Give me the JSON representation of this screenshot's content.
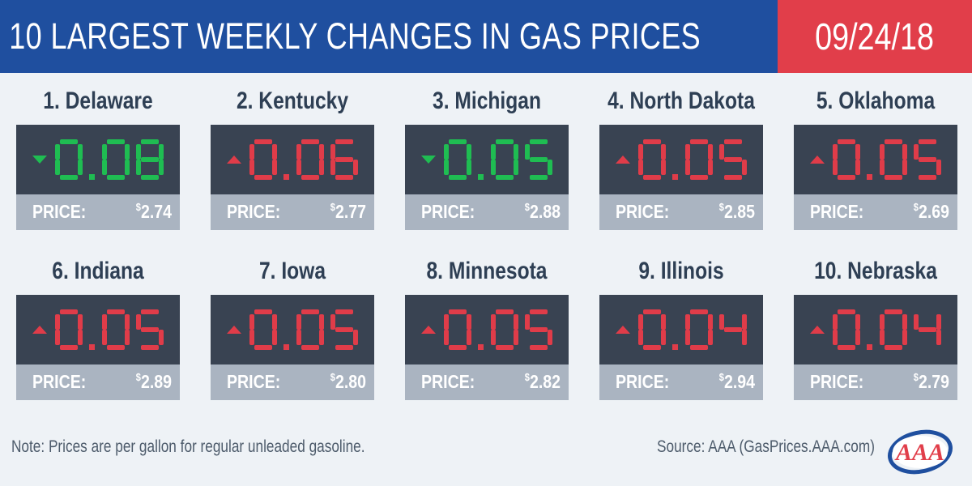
{
  "header": {
    "title": "10 LARGEST WEEKLY CHANGES IN GAS PRICES",
    "date": "09/24/18",
    "colors": {
      "title_bg": "#1f4f9f",
      "date_bg": "#e13e4a"
    }
  },
  "price_label": "PRICE:",
  "currency_symbol": "$",
  "colors": {
    "up": "#e03c49",
    "down": "#1fbd52",
    "display_bg": "#394352",
    "price_bg": "#aab4c1"
  },
  "states": [
    {
      "rank_label": "1. Delaware",
      "direction": "down",
      "change": "0.08",
      "price": "2.74"
    },
    {
      "rank_label": "2. Kentucky",
      "direction": "up",
      "change": "0.06",
      "price": "2.77"
    },
    {
      "rank_label": "3. Michigan",
      "direction": "down",
      "change": "0.05",
      "price": "2.88"
    },
    {
      "rank_label": "4. North Dakota",
      "direction": "up",
      "change": "0.05",
      "price": "2.85"
    },
    {
      "rank_label": "5. Oklahoma",
      "direction": "up",
      "change": "0.05",
      "price": "2.69"
    },
    {
      "rank_label": "6. Indiana",
      "direction": "up",
      "change": "0.05",
      "price": "2.89"
    },
    {
      "rank_label": "7. Iowa",
      "direction": "up",
      "change": "0.05",
      "price": "2.80"
    },
    {
      "rank_label": "8. Minnesota",
      "direction": "up",
      "change": "0.05",
      "price": "2.82"
    },
    {
      "rank_label": "9. Illinois",
      "direction": "up",
      "change": "0.04",
      "price": "2.94"
    },
    {
      "rank_label": "10. Nebraska",
      "direction": "up",
      "change": "0.04",
      "price": "2.79"
    }
  ],
  "footer": {
    "note": "Note: Prices are per gallon for regular unleaded gasoline.",
    "source": "Source: AAA (GasPrices.AAA.com)"
  },
  "logo": {
    "text": "AAA",
    "icon": "aaa-logo-icon"
  }
}
